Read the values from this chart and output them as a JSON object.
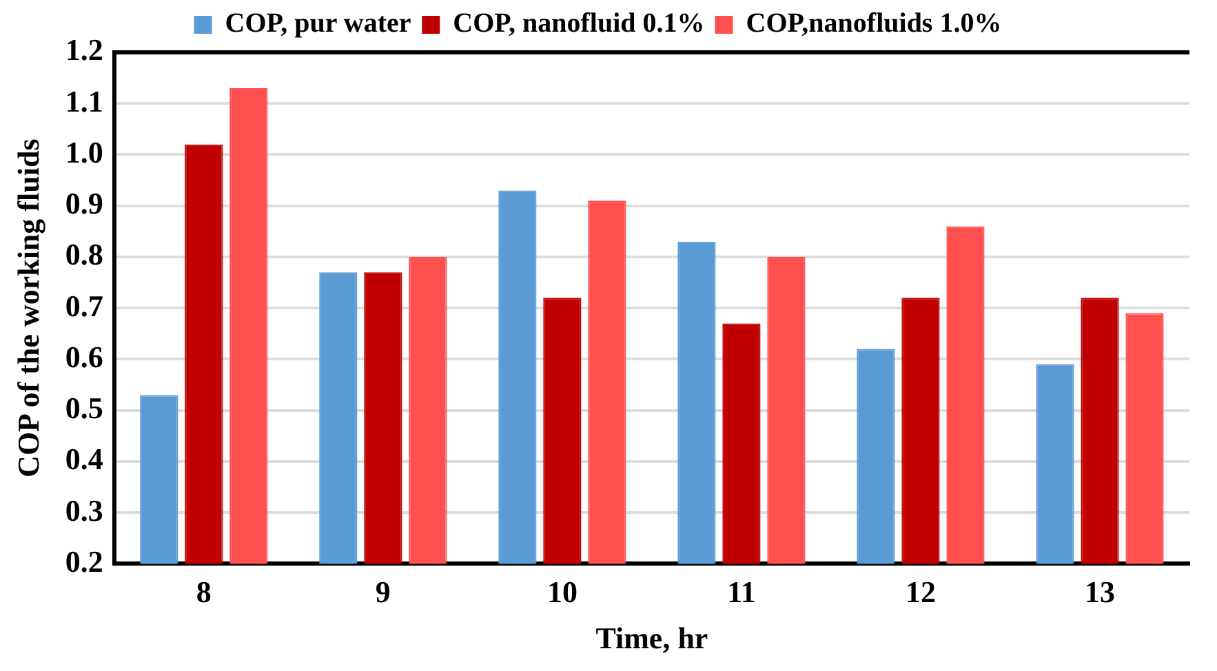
{
  "chart_data": {
    "type": "bar",
    "xlabel": "Time, hr",
    "ylabel": "COP of the working fluids",
    "categories": [
      "8",
      "9",
      "10",
      "11",
      "12",
      "13"
    ],
    "series": [
      {
        "name": "COP, pur water",
        "color": "#5b9bd5",
        "values": [
          0.53,
          0.77,
          0.93,
          0.83,
          0.62,
          0.59
        ]
      },
      {
        "name": "COP, nanofluid 0.1%",
        "color": "#c00000",
        "values": [
          1.02,
          0.77,
          0.72,
          0.67,
          0.72,
          0.72
        ]
      },
      {
        "name": "COP,nanofluids 1.0%",
        "color": "#ff5050",
        "values": [
          1.13,
          0.8,
          0.91,
          0.8,
          0.86,
          0.69
        ]
      }
    ],
    "ylim": [
      0.2,
      1.2
    ],
    "yticks": [
      {
        "value": 0.2,
        "label": "0.2"
      },
      {
        "value": 0.3,
        "label": "0.3"
      },
      {
        "value": 0.4,
        "label": "0.4"
      },
      {
        "value": 0.5,
        "label": "0.5"
      },
      {
        "value": 0.6,
        "label": "0.6"
      },
      {
        "value": 0.7,
        "label": "0.7"
      },
      {
        "value": 0.8,
        "label": "0.8"
      },
      {
        "value": 0.9,
        "label": "0.9"
      },
      {
        "value": 1.0,
        "label": "1.0"
      },
      {
        "value": 1.1,
        "label": "1.1"
      },
      {
        "value": 1.2,
        "label": "1.2"
      }
    ],
    "grid": "y",
    "legend": "top"
  }
}
